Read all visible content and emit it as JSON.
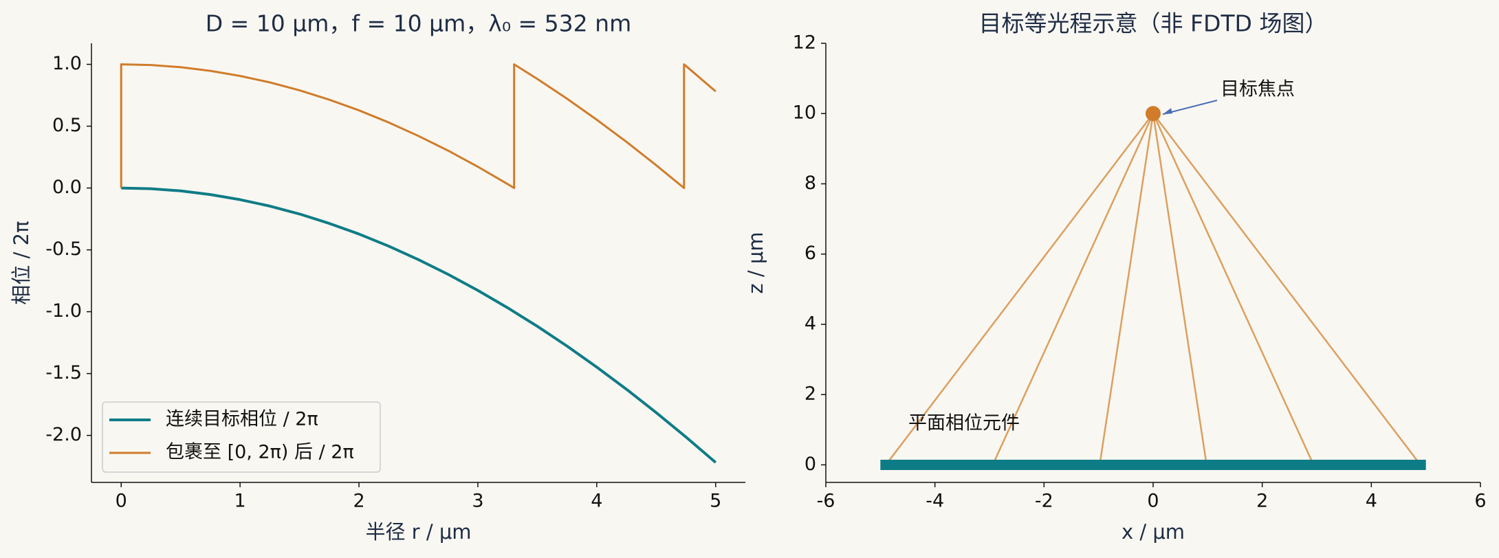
{
  "chart_data": [
    {
      "type": "line",
      "title": "D = 10 μm，f = 10 μm，λ₀ = 532 nm",
      "x_label": "半径 r / μm",
      "y_label": "相位 / 2π",
      "xlim": [
        -0.25,
        5.25
      ],
      "ylim": [
        -2.38,
        1.17
      ],
      "xticks": [
        0,
        1,
        2,
        3,
        4,
        5
      ],
      "yticks": [
        {
          "value": 1,
          "label": "1.0"
        },
        {
          "value": 0.5,
          "label": "0.5"
        },
        {
          "value": 0,
          "label": "0.0"
        },
        {
          "value": -0.5,
          "label": "-0.5"
        },
        {
          "value": -1,
          "label": "-1.0"
        },
        {
          "value": -1.5,
          "label": "-1.5"
        },
        {
          "value": -2,
          "label": "-2.0"
        }
      ],
      "legend": "lower left",
      "series": [
        {
          "name": "连续目标相位 / 2π",
          "color": "#0e7c86",
          "width": 4,
          "x": [
            0,
            0.25,
            0.5,
            0.75,
            1,
            1.25,
            1.5,
            1.75,
            2,
            2.25,
            2.5,
            2.75,
            3,
            3.25,
            3.5,
            3.75,
            4,
            4.25,
            4.5,
            4.75,
            5
          ],
          "values": [
            0,
            -0.006,
            -0.023,
            -0.053,
            -0.094,
            -0.146,
            -0.21,
            -0.286,
            -0.372,
            -0.47,
            -0.579,
            -0.698,
            -0.828,
            -0.968,
            -1.118,
            -1.278,
            -1.448,
            -1.627,
            -1.816,
            -2.013,
            -2.219
          ]
        },
        {
          "name": "包裹至 [0, 2π) 后 / 2π",
          "color": "#d07c2a",
          "width": 3,
          "x": [
            0,
            0,
            0.25,
            0.5,
            0.75,
            1,
            1.25,
            1.5,
            1.75,
            2,
            2.25,
            2.5,
            2.75,
            3,
            3.25,
            3.305,
            3.305,
            3.5,
            3.75,
            4,
            4.25,
            4.5,
            4.734,
            4.734,
            4.75,
            5
          ],
          "values": [
            0,
            1,
            0.994,
            0.977,
            0.947,
            0.906,
            0.854,
            0.79,
            0.714,
            0.628,
            0.53,
            0.421,
            0.302,
            0.172,
            0.032,
            0,
            1,
            0.882,
            0.722,
            0.552,
            0.373,
            0.184,
            0,
            1,
            0.987,
            0.781
          ]
        }
      ]
    },
    {
      "type": "diagram",
      "title": "目标等光程示意（非 FDTD 场图）",
      "x_label": "x / μm",
      "y_label": "z / μm",
      "xlim": [
        -6,
        6
      ],
      "ylim": [
        -0.5,
        12
      ],
      "xticks": [
        -6,
        -4,
        -2,
        0,
        2,
        4,
        6
      ],
      "yticks": [
        0,
        2,
        4,
        6,
        8,
        10,
        12
      ],
      "element": {
        "x": [
          -5,
          5
        ],
        "z": 0,
        "color": "#0e7c86",
        "label": "平面相位元件"
      },
      "focus": {
        "x": 0,
        "z": 10,
        "color": "#d07c2a",
        "label": "目标焦点"
      },
      "rays": {
        "x": [
          -4.9,
          -2.94,
          -0.98,
          0.98,
          2.94,
          4.9
        ],
        "color": "#dba05e"
      }
    }
  ]
}
